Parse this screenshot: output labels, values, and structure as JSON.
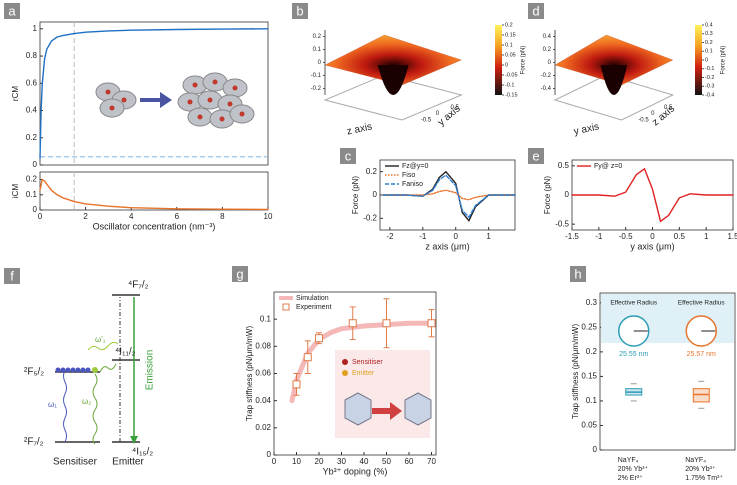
{
  "panel_labels": [
    "a",
    "b",
    "c",
    "d",
    "e",
    "f",
    "g",
    "h"
  ],
  "chart_data": [
    {
      "type": "line",
      "ylabel": "rCM",
      "xlim": [
        0,
        10
      ],
      "ylim": [
        0,
        1.05
      ],
      "yticks": [
        0,
        0.2,
        0.4,
        0.6,
        0.8,
        1
      ],
      "x": [
        0,
        0.05,
        0.1,
        0.2,
        0.3,
        0.5,
        0.75,
        1,
        1.5,
        2,
        3,
        4,
        6,
        8,
        10
      ],
      "series": [
        {
          "color": "#1f6fc4",
          "values": [
            0.05,
            0.4,
            0.6,
            0.78,
            0.85,
            0.91,
            0.94,
            0.95,
            0.965,
            0.975,
            0.985,
            0.99,
            0.995,
            0.998,
            1.0
          ]
        }
      ],
      "hline": 0.06,
      "vline": 1.5
    },
    {
      "type": "line",
      "ylabel": "iCM",
      "xlabel": "Oscillator concentration (nm⁻³)",
      "xlim": [
        0,
        10
      ],
      "ylim": [
        0,
        0.25
      ],
      "xticks": [
        0,
        2,
        4,
        6,
        8,
        10
      ],
      "yticks": [
        0,
        0.1,
        0.2
      ],
      "x": [
        0,
        0.1,
        0.2,
        0.3,
        0.5,
        0.75,
        1,
        1.5,
        2,
        3,
        4,
        6,
        8,
        10
      ],
      "series": [
        {
          "color": "#e8732a",
          "values": [
            0.13,
            0.2,
            0.19,
            0.17,
            0.13,
            0.1,
            0.08,
            0.055,
            0.04,
            0.025,
            0.015,
            0.008,
            0.005,
            0.004
          ]
        }
      ],
      "vline": 1.5
    },
    {
      "type": "surface",
      "xlabel": "z axis",
      "ylabel": "y axis",
      "zlim": [
        -0.25,
        0.25
      ],
      "zticks": [
        0.2,
        0.1,
        0,
        -0.1,
        -0.2
      ],
      "floor_ticks": [
        -0.5,
        0,
        0.5
      ],
      "colorbar_label": "Force (pN)",
      "clim": [
        -0.15,
        0.2
      ],
      "cticks": [
        0.2,
        0.15,
        0.1,
        0.05,
        0,
        -0.05,
        -0.1,
        -0.15
      ]
    },
    {
      "type": "line",
      "xlabel": "z axis (μm)",
      "ylabel": "Force (pN)",
      "xlim": [
        -2.3,
        1.8
      ],
      "ylim": [
        -0.3,
        0.3
      ],
      "xticks": [
        -2,
        -1,
        0,
        1
      ],
      "yticks": [
        0.2,
        0,
        -0.2
      ],
      "x": [
        -2.2,
        -1.5,
        -1,
        -0.7,
        -0.5,
        -0.3,
        0,
        0.2,
        0.4,
        0.6,
        1,
        1.5,
        1.8
      ],
      "series": [
        {
          "name": "Fz@y=0",
          "color": "#222222",
          "linestyle": "solid",
          "values": [
            0,
            0,
            -0.01,
            0.05,
            0.15,
            0.2,
            0.1,
            -0.15,
            -0.22,
            -0.1,
            0,
            0,
            0
          ]
        },
        {
          "name": "Fiso",
          "color": "#e8732a",
          "linestyle": "dotted",
          "values": [
            0,
            0,
            0,
            0.01,
            0.03,
            0.04,
            0.02,
            -0.03,
            -0.04,
            -0.02,
            0,
            0,
            0
          ]
        },
        {
          "name": "Faniso",
          "color": "#2f7fd0",
          "linestyle": "dashed",
          "values": [
            0,
            0,
            -0.01,
            0.04,
            0.13,
            0.17,
            0.08,
            -0.13,
            -0.19,
            -0.09,
            0,
            0,
            0
          ]
        }
      ]
    },
    {
      "type": "surface",
      "xlabel": "y axis",
      "ylabel": "z axis",
      "zlim": [
        -0.5,
        0.5
      ],
      "zticks": [
        0.4,
        0.2,
        0,
        -0.2,
        -0.4
      ],
      "floor_ticks": [
        -0.5,
        0,
        0.5
      ],
      "colorbar_label": "Force (pN)",
      "clim": [
        -0.4,
        0.4
      ],
      "cticks": [
        0.4,
        0.3,
        0.2,
        0.1,
        0,
        -0.1,
        -0.2,
        -0.3,
        -0.4
      ]
    },
    {
      "type": "line",
      "xlabel": "y axis (μm)",
      "ylabel": "Force (pN)",
      "xlim": [
        -1.5,
        1.5
      ],
      "ylim": [
        -0.6,
        0.6
      ],
      "xticks": [
        -1.5,
        -1,
        -0.5,
        0,
        0.5,
        1,
        1.5
      ],
      "yticks": [
        0.5,
        0,
        -0.5
      ],
      "x": [
        -1.5,
        -1,
        -0.7,
        -0.5,
        -0.3,
        -0.15,
        0,
        0.15,
        0.3,
        0.5,
        0.7,
        1,
        1.5
      ],
      "series": [
        {
          "name": "Fy@ z=0",
          "color": "#e02020",
          "linestyle": "solid",
          "values": [
            0,
            0,
            -0.02,
            0.05,
            0.35,
            0.45,
            0.1,
            -0.45,
            -0.35,
            -0.05,
            0.02,
            0,
            0
          ]
        }
      ]
    },
    {
      "type": "line",
      "xlabel": "Yb³⁺ doping (%)",
      "ylabel": "Trap stiffness (pN/μm/mW)",
      "xlim": [
        0,
        72
      ],
      "ylim": [
        0,
        0.12
      ],
      "xticks": [
        0,
        10,
        20,
        30,
        40,
        50,
        60,
        70
      ],
      "yticks": [
        0,
        0.02,
        0.04,
        0.06,
        0.08,
        0.1
      ],
      "series": [
        {
          "name": "Simulation",
          "color": "#f4b8b8",
          "linestyle": "solid",
          "linewidth": 5,
          "x": [
            8,
            10,
            15,
            20,
            25,
            30,
            40,
            50,
            60,
            70
          ],
          "values": [
            0.04,
            0.055,
            0.075,
            0.085,
            0.09,
            0.093,
            0.095,
            0.096,
            0.097,
            0.097
          ]
        },
        {
          "name": "Experiment",
          "color": "#e07b4a",
          "linestyle": "none",
          "marker": "square",
          "x": [
            10,
            15,
            20,
            35,
            50,
            70
          ],
          "values": [
            0.052,
            0.072,
            0.086,
            0.097,
            0.097,
            0.097
          ],
          "errors": [
            0.008,
            0.012,
            0.004,
            0.012,
            0.018,
            0.01
          ]
        }
      ],
      "inset_labels": [
        "Sensitiser",
        "Emitter"
      ]
    },
    {
      "type": "box",
      "ylabel": "Trap stiffness (pN/μm/mW)",
      "ylim": [
        0,
        0.32
      ],
      "yticks": [
        0,
        0.05,
        0.1,
        0.15,
        0.2,
        0.25,
        0.3
      ],
      "categories": [
        [
          "NaYF₄",
          "20% Yb³⁺",
          "2% Er³⁺"
        ],
        [
          "NaYF₄",
          "20% Yb³⁺",
          "1.75% Tm³⁺"
        ]
      ],
      "boxes": [
        {
          "color": "#2f9bb5",
          "whislo": 0.1,
          "q1": 0.112,
          "median": 0.118,
          "q3": 0.125,
          "whishi": 0.135
        },
        {
          "color": "#e8732a",
          "whislo": 0.085,
          "q1": 0.098,
          "median": 0.113,
          "q3": 0.125,
          "whishi": 0.14
        }
      ],
      "insets": [
        {
          "title": "Effective Radius",
          "radius": "25.55 nm",
          "color": "#2f9bb5"
        },
        {
          "title": "Effective Radius",
          "radius": "25.57 nm",
          "color": "#e8732a"
        }
      ]
    }
  ],
  "diagram": {
    "f72": "⁴F₇/₂",
    "i112": "⁴I₁₁/₂",
    "i152": "⁴I₁₅/₂",
    "f52": "²F₅/₂",
    "f72s": "²F₇/₂",
    "w1": "ω₁",
    "w2": "ω₂",
    "w1p": "ω'₁",
    "emission": "Emission",
    "sensitiser": "Sensitiser",
    "emitter": "Emitter"
  }
}
